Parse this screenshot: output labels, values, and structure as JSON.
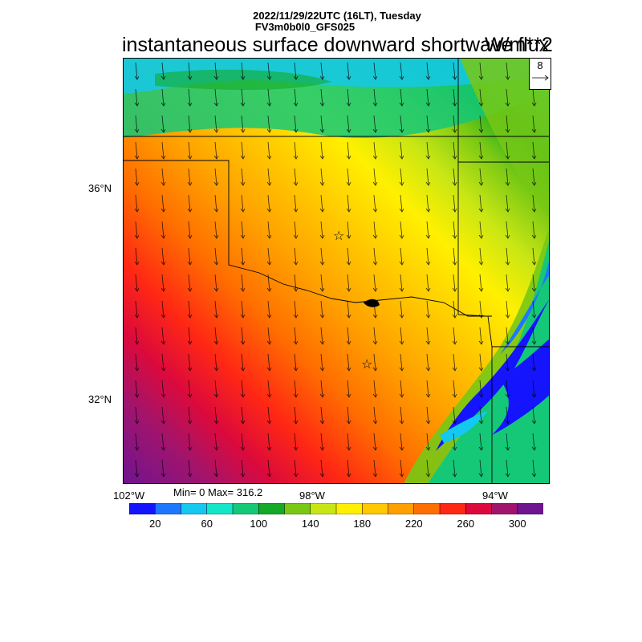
{
  "header": {
    "line1": "2022/11/29/22UTC (16LT), Tuesday",
    "line2": "FV3m0b0l0_GFS025"
  },
  "title": "instantaneous surface downward shortwave flux",
  "units": "W/m**2",
  "vector_reference": {
    "label": "8"
  },
  "axes": {
    "lat_labels": [
      "36°N",
      "32°N"
    ],
    "lon_labels": [
      "102°W",
      "98°W",
      "94°W"
    ]
  },
  "stats": {
    "text": "Min= 0 Max= 316.2"
  },
  "colorbar": {
    "colors": [
      "#1414ff",
      "#1e78ff",
      "#14c8f0",
      "#14e6c8",
      "#14c878",
      "#14aa28",
      "#78c814",
      "#c8e614",
      "#fff000",
      "#ffc800",
      "#ffa000",
      "#ff6e00",
      "#ff2814",
      "#dc0a3c",
      "#a0146e",
      "#6e1490"
    ],
    "labels": [
      "20",
      "60",
      "100",
      "140",
      "180",
      "220",
      "260",
      "300"
    ]
  },
  "markers": {
    "symbol": "☆"
  }
}
